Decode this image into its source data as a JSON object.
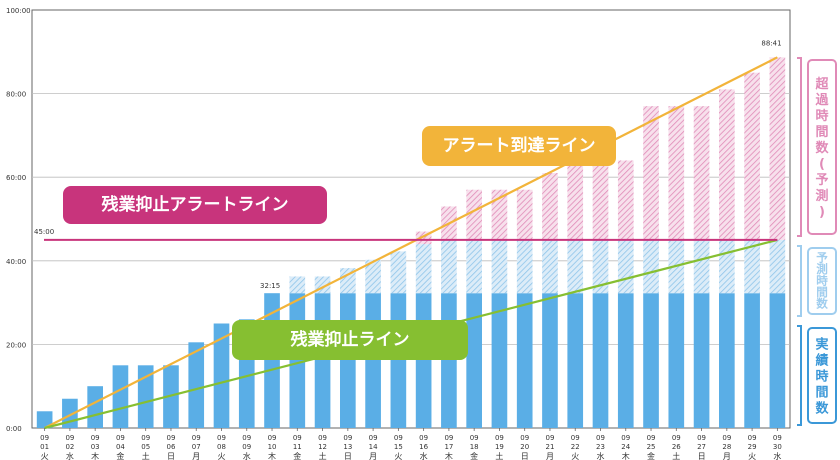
{
  "chart_data": {
    "type": "bar",
    "ylim": [
      0,
      100
    ],
    "y_ticks": [
      "0:00",
      "20:00",
      "40:00",
      "60:00",
      "80:00",
      "100:00"
    ],
    "grid": true,
    "categories": [
      {
        "date": "01",
        "day": "火"
      },
      {
        "date": "02",
        "day": "水"
      },
      {
        "date": "03",
        "day": "木"
      },
      {
        "date": "04",
        "day": "金"
      },
      {
        "date": "05",
        "day": "土"
      },
      {
        "date": "06",
        "day": "日"
      },
      {
        "date": "07",
        "day": "月"
      },
      {
        "date": "08",
        "day": "火"
      },
      {
        "date": "09",
        "day": "水"
      },
      {
        "date": "10",
        "day": "木"
      },
      {
        "date": "11",
        "day": "金"
      },
      {
        "date": "12",
        "day": "土"
      },
      {
        "date": "13",
        "day": "日"
      },
      {
        "date": "14",
        "day": "月"
      },
      {
        "date": "15",
        "day": "火"
      },
      {
        "date": "16",
        "day": "水"
      },
      {
        "date": "17",
        "day": "木"
      },
      {
        "date": "18",
        "day": "金"
      },
      {
        "date": "19",
        "day": "土"
      },
      {
        "date": "20",
        "day": "日"
      },
      {
        "date": "21",
        "day": "月"
      },
      {
        "date": "22",
        "day": "火"
      },
      {
        "date": "23",
        "day": "水"
      },
      {
        "date": "24",
        "day": "木"
      },
      {
        "date": "25",
        "day": "金"
      },
      {
        "date": "26",
        "day": "土"
      },
      {
        "date": "27",
        "day": "日"
      },
      {
        "date": "28",
        "day": "月"
      },
      {
        "date": "29",
        "day": "火"
      },
      {
        "date": "30",
        "day": "水"
      }
    ],
    "series": [
      {
        "name": "実績時間数",
        "values": [
          4,
          7,
          10,
          15,
          15,
          15,
          20.5,
          25,
          26,
          32.25,
          32.25,
          32.25,
          32.25,
          32.25,
          32.25,
          32.25,
          32.25,
          32.25,
          32.25,
          32.25,
          32.25,
          32.25,
          32.25,
          32.25,
          32.25,
          32.25,
          32.25,
          32.25,
          32.25,
          32.25
        ]
      },
      {
        "name": "予測時間数",
        "values": [
          0,
          0,
          0,
          0,
          0,
          0,
          0,
          0,
          0,
          0,
          4,
          4,
          6,
          8,
          10,
          11.75,
          12.75,
          12.75,
          12.75,
          12.75,
          12.75,
          12.75,
          12.75,
          12.75,
          12.75,
          12.75,
          12.75,
          12.75,
          12.75,
          12.75
        ]
      },
      {
        "name": "超過時間数(予測)",
        "values": [
          0,
          0,
          0,
          0,
          0,
          0,
          0,
          0,
          0,
          0,
          0,
          0,
          0,
          0,
          0,
          3,
          8,
          12,
          12,
          12,
          16,
          19,
          19,
          19,
          32,
          32,
          32,
          36,
          40,
          43.68
        ]
      }
    ],
    "colors": {
      "actual": "#5aaee6",
      "forecast": "#b6d9f1",
      "excess": "#e79ac4",
      "alert_line": "#f2b43a",
      "suppress_line": "#86bf31",
      "suppress_alert_line": "#c8347c"
    },
    "data_labels": {
      "first_value": "32:15",
      "last_value": "88:41",
      "threshold_value": "45:00"
    },
    "threshold": 45,
    "lines": [
      {
        "name": "アラート到達ライン",
        "from": 0,
        "to": 88.68
      },
      {
        "name": "残業抑止ライン",
        "from": 0,
        "to": 45
      },
      {
        "name": "残業抑止アラートライン",
        "value": 45
      }
    ],
    "legend": [
      {
        "text": "超過時間数(予測)",
        "color": "#e08ab7"
      },
      {
        "text": "予測時間数",
        "color": "#9fcdee"
      },
      {
        "text": "実績時間数",
        "color": "#3b98d8"
      }
    ]
  }
}
